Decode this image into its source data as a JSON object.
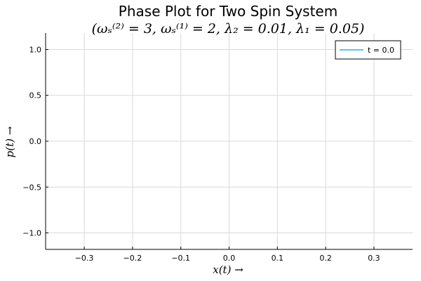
{
  "chart_data": {
    "type": "line",
    "title": "Phase Plot for Two Spin System",
    "subtitle": "(ωₛ⁽²⁾ = 3, ωₛ⁽¹⁾ = 2, λ₂ = 0.01, λ₁ = 0.05)",
    "xlabel": "x(t) →",
    "ylabel": "p(t) →",
    "xlim": [
      -0.38,
      0.38
    ],
    "ylim": [
      -1.18,
      1.18
    ],
    "x_ticks": [
      -0.3,
      -0.2,
      -0.1,
      0.0,
      0.1,
      0.2,
      0.3
    ],
    "x_tick_labels": [
      "−0.3",
      "−0.2",
      "−0.1",
      "0.0",
      "0.1",
      "0.2",
      "0.3"
    ],
    "y_ticks": [
      -1.0,
      -0.5,
      0.0,
      0.5,
      1.0
    ],
    "y_tick_labels": [
      "−1.0",
      "−0.5",
      "0.0",
      "0.5",
      "1.0"
    ],
    "grid": true,
    "legend_position": "top-right",
    "series": [
      {
        "name": "t = 0.0",
        "color": "#009AFA",
        "x": [],
        "y": []
      }
    ]
  }
}
